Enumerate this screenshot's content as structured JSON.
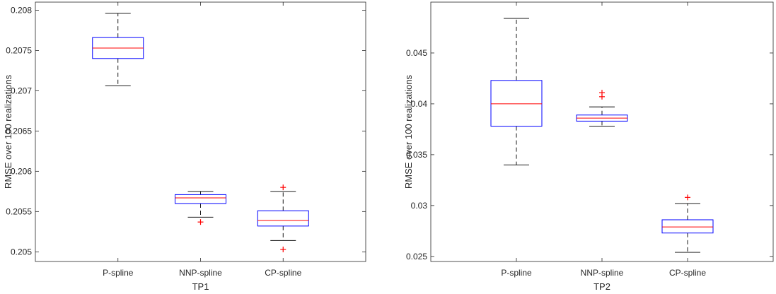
{
  "colors": {
    "box": "#0000ff",
    "median": "#ff0000",
    "whisker": "#000000",
    "outlier": "#ff0000",
    "axes": "#262626"
  },
  "chart_data": [
    {
      "type": "box",
      "title": "",
      "xlabel": "TP1",
      "ylabel": "RMSE over 100 realizations",
      "categories": [
        "P-spline",
        "NNP-spline",
        "CP-spline"
      ],
      "ylim": [
        0.20488,
        0.2081
      ],
      "yticks": [
        0.205,
        0.2055,
        0.206,
        0.2065,
        0.207,
        0.2075,
        0.208
      ],
      "ytick_labels": [
        "0.205",
        "0.2055",
        "0.206",
        "0.2065",
        "0.207",
        "0.2075",
        "0.208"
      ],
      "grid": false,
      "boxes": [
        {
          "whisker_low": 0.20706,
          "q1": 0.2074,
          "median": 0.20753,
          "q3": 0.20766,
          "whisker_high": 0.20796,
          "outliers": []
        },
        {
          "whisker_low": 0.20543,
          "q1": 0.2056,
          "median": 0.20567,
          "q3": 0.20571,
          "whisker_high": 0.20575,
          "outliers": [
            0.20537
          ]
        },
        {
          "whisker_low": 0.20514,
          "q1": 0.20532,
          "median": 0.20539,
          "q3": 0.20551,
          "whisker_high": 0.20575,
          "outliers": [
            0.2058,
            0.20503
          ]
        }
      ]
    },
    {
      "type": "box",
      "title": "",
      "xlabel": "TP2",
      "ylabel": "RMSE over 100 realizations",
      "categories": [
        "P-spline",
        "NNP-spline",
        "CP-spline"
      ],
      "ylim": [
        0.0245,
        0.05
      ],
      "yticks": [
        0.025,
        0.03,
        0.035,
        0.04,
        0.045
      ],
      "ytick_labels": [
        "0.025",
        "0.03",
        "0.035",
        "0.04",
        "0.045"
      ],
      "grid": false,
      "boxes": [
        {
          "whisker_low": 0.034,
          "q1": 0.0378,
          "median": 0.04,
          "q3": 0.0423,
          "whisker_high": 0.0484,
          "outliers": []
        },
        {
          "whisker_low": 0.0378,
          "q1": 0.0383,
          "median": 0.0386,
          "q3": 0.0389,
          "whisker_high": 0.0397,
          "outliers": [
            0.0411,
            0.0407
          ]
        },
        {
          "whisker_low": 0.0254,
          "q1": 0.0273,
          "median": 0.0279,
          "q3": 0.0286,
          "whisker_high": 0.0302,
          "outliers": [
            0.0308
          ]
        }
      ]
    }
  ]
}
